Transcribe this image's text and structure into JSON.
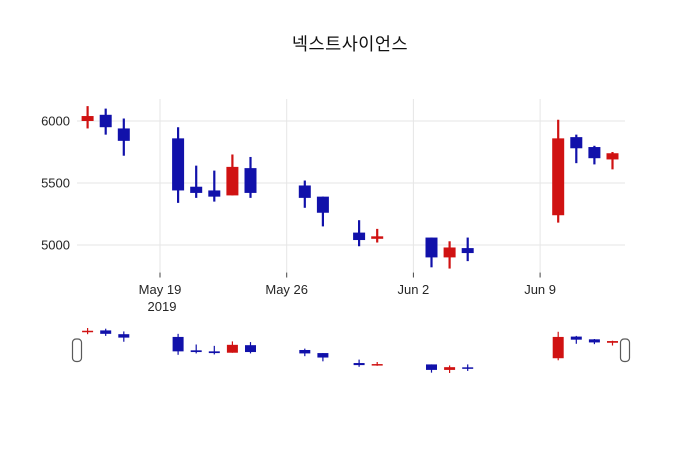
{
  "title": "넥스트사이언스",
  "chart_data": {
    "type": "candlestick",
    "title": "넥스트사이언스",
    "colors": {
      "increasing": "#d01212",
      "decreasing": "#1111aa",
      "grid": "#e6e6e6",
      "tick": "#444444",
      "label": "#262626"
    },
    "x_axis": {
      "ticks": [
        {
          "label": "May 19",
          "sub": "2019",
          "t": 0
        },
        {
          "label": "May 26",
          "sub": "",
          "t": 7
        },
        {
          "label": "Jun 2",
          "sub": "",
          "t": 14
        },
        {
          "label": "Jun 9",
          "sub": "",
          "t": 21
        }
      ]
    },
    "y_axis": {
      "ticks": [
        5000,
        5500,
        6000
      ],
      "range": [
        4782,
        6177
      ]
    },
    "candles": [
      {
        "date": "2019-05-15",
        "t": -4,
        "open": 6000,
        "high": 6120,
        "low": 5940,
        "close": 6040
      },
      {
        "date": "2019-05-16",
        "t": -3,
        "open": 6050,
        "high": 6100,
        "low": 5890,
        "close": 5950
      },
      {
        "date": "2019-05-17",
        "t": -2,
        "open": 5940,
        "high": 6020,
        "low": 5720,
        "close": 5840
      },
      {
        "date": "2019-05-20",
        "t": 1,
        "open": 5860,
        "high": 5950,
        "low": 5340,
        "close": 5440
      },
      {
        "date": "2019-05-21",
        "t": 2,
        "open": 5470,
        "high": 5640,
        "low": 5380,
        "close": 5420
      },
      {
        "date": "2019-05-22",
        "t": 3,
        "open": 5440,
        "high": 5600,
        "low": 5350,
        "close": 5390
      },
      {
        "date": "2019-05-23",
        "t": 4,
        "open": 5400,
        "high": 5730,
        "low": 5400,
        "close": 5630
      },
      {
        "date": "2019-05-24",
        "t": 5,
        "open": 5620,
        "high": 5710,
        "low": 5380,
        "close": 5420
      },
      {
        "date": "2019-05-27",
        "t": 8,
        "open": 5480,
        "high": 5520,
        "low": 5300,
        "close": 5380
      },
      {
        "date": "2019-05-28",
        "t": 9,
        "open": 5390,
        "high": 5390,
        "low": 5150,
        "close": 5260
      },
      {
        "date": "2019-05-30",
        "t": 11,
        "open": 5100,
        "high": 5200,
        "low": 4990,
        "close": 5040
      },
      {
        "date": "2019-05-31",
        "t": 12,
        "open": 5050,
        "high": 5130,
        "low": 5020,
        "close": 5070
      },
      {
        "date": "2019-06-03",
        "t": 15,
        "open": 5060,
        "high": 5060,
        "low": 4820,
        "close": 4900
      },
      {
        "date": "2019-06-04",
        "t": 16,
        "open": 4900,
        "high": 5030,
        "low": 4810,
        "close": 4980
      },
      {
        "date": "2019-06-05",
        "t": 17,
        "open": 4975,
        "high": 5060,
        "low": 4870,
        "close": 4935
      },
      {
        "date": "2019-06-10",
        "t": 22,
        "open": 5240,
        "high": 6010,
        "low": 5180,
        "close": 5860
      },
      {
        "date": "2019-06-11",
        "t": 23,
        "open": 5870,
        "high": 5890,
        "low": 5660,
        "close": 5780
      },
      {
        "date": "2019-06-12",
        "t": 24,
        "open": 5790,
        "high": 5800,
        "low": 5650,
        "close": 5700
      },
      {
        "date": "2019-06-13",
        "t": 25,
        "open": 5690,
        "high": 5750,
        "low": 5610,
        "close": 5740
      }
    ],
    "rangeslider": {
      "visible": true,
      "value_range": [
        4810,
        6120
      ]
    }
  }
}
